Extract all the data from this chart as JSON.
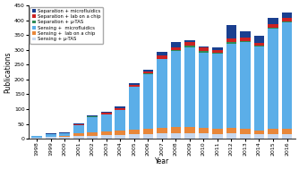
{
  "years": [
    "1998",
    "1999",
    "2000",
    "2001",
    "2002",
    "2003",
    "2004",
    "2005",
    "2006",
    "2007",
    "2008",
    "2009",
    "2010",
    "2011",
    "2012",
    "2013",
    "2014",
    "2015",
    "2016"
  ],
  "sensing_mutas": [
    3,
    5,
    7,
    10,
    10,
    12,
    12,
    15,
    15,
    18,
    18,
    18,
    18,
    15,
    18,
    15,
    15,
    15,
    15
  ],
  "sensing_labchip": [
    0,
    2,
    2,
    7,
    12,
    12,
    15,
    15,
    18,
    20,
    22,
    22,
    18,
    18,
    18,
    18,
    12,
    18,
    18
  ],
  "sensing_micro": [
    5,
    8,
    10,
    30,
    52,
    58,
    70,
    145,
    185,
    230,
    255,
    270,
    255,
    255,
    285,
    295,
    285,
    340,
    360
  ],
  "sep_mutas": [
    0,
    0,
    0,
    0,
    1,
    1,
    1,
    1,
    2,
    2,
    3,
    5,
    5,
    3,
    5,
    3,
    3,
    3,
    3
  ],
  "sep_labchip": [
    0,
    0,
    0,
    2,
    2,
    4,
    5,
    5,
    8,
    10,
    12,
    12,
    12,
    8,
    12,
    12,
    10,
    12,
    13
  ],
  "sep_micro": [
    2,
    2,
    2,
    3,
    3,
    3,
    5,
    8,
    5,
    12,
    18,
    5,
    5,
    8,
    45,
    20,
    22,
    20,
    18
  ],
  "color_sensing_mutas": "#c8d8ee",
  "color_sensing_labchip": "#e8873a",
  "color_sensing_micro": "#5baee8",
  "color_sep_mutas": "#2e8b57",
  "color_sep_labchip": "#cc2222",
  "color_sep_micro": "#1a3f8f",
  "ylim": [
    0,
    450
  ],
  "yticks": [
    0,
    50,
    100,
    150,
    200,
    250,
    300,
    350,
    400,
    450
  ],
  "ylabel": "Publications",
  "xlabel": "Year"
}
